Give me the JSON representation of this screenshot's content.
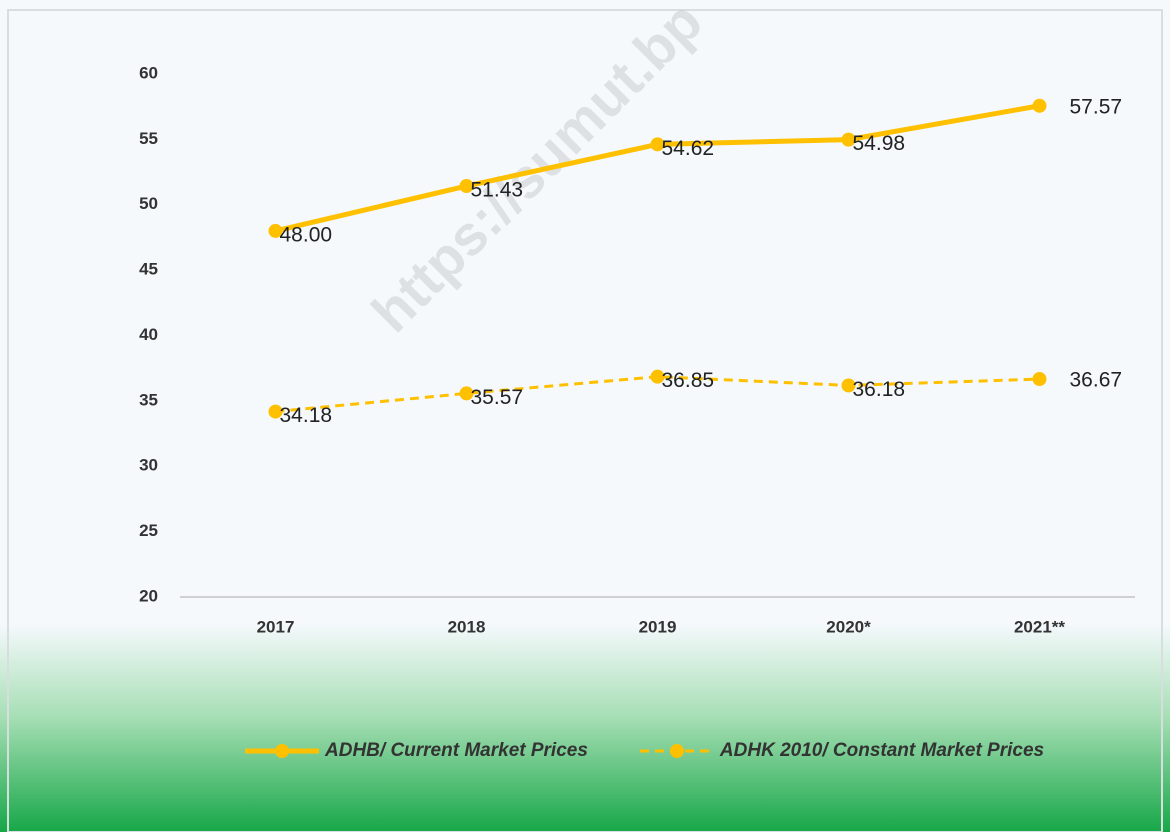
{
  "chart_data": {
    "type": "line",
    "categories": [
      "2017",
      "2018",
      "2019",
      "2020*",
      "2021**"
    ],
    "series": [
      {
        "name": "ADHB/ Current Market Prices",
        "color": "#ffc000",
        "dashed": false,
        "values": [
          48,
          51.43,
          54.62,
          54.98,
          57.57
        ],
        "value_labels": [
          "48.00",
          "51.43",
          "54.62",
          "54.98",
          "57.57"
        ]
      },
      {
        "name": "ADHK 2010/ Constant Market Prices",
        "color": "#ffc000",
        "dashed": true,
        "values": [
          34.18,
          35.57,
          36.85,
          36.18,
          36.67
        ],
        "value_labels": [
          "34.18",
          "35.57",
          "36.85",
          "36.18",
          "36.67"
        ]
      }
    ],
    "ylim": [
      20,
      60
    ],
    "yticks": [
      20,
      25,
      30,
      35,
      40,
      45,
      50,
      55,
      60
    ],
    "grid": false,
    "legend": "bottom",
    "watermark": "https://sumut.bp"
  }
}
